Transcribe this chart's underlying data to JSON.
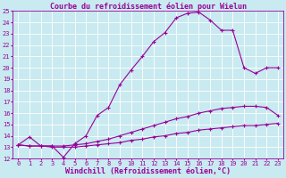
{
  "title": "Courbe du refroidissement éolien pour Wielun",
  "xlabel": "Windchill (Refroidissement éolien,°C)",
  "bg_color": "#c8eaf0",
  "line_color": "#990099",
  "grid_color": "#ffffff",
  "xlim": [
    -0.5,
    23.5
  ],
  "ylim": [
    12,
    25
  ],
  "xticks": [
    0,
    1,
    2,
    3,
    4,
    5,
    6,
    7,
    8,
    9,
    10,
    11,
    12,
    13,
    14,
    15,
    16,
    17,
    18,
    19,
    20,
    21,
    22,
    23
  ],
  "yticks": [
    12,
    13,
    14,
    15,
    16,
    17,
    18,
    19,
    20,
    21,
    22,
    23,
    24,
    25
  ],
  "line1_x": [
    0,
    1,
    2,
    3,
    4,
    5,
    6,
    7,
    8,
    9,
    10,
    11,
    12,
    13,
    14,
    15,
    16,
    17,
    18,
    19,
    20,
    21,
    22,
    23
  ],
  "line1_y": [
    13.2,
    13.9,
    13.1,
    13.1,
    12.1,
    13.3,
    14.0,
    15.8,
    16.5,
    18.5,
    19.8,
    21.0,
    22.3,
    23.1,
    24.4,
    24.8,
    24.9,
    24.2,
    23.3,
    23.3,
    20.0,
    19.5,
    20.0,
    20.0
  ],
  "line2_x": [
    0,
    1,
    2,
    3,
    4,
    5,
    6,
    7,
    8,
    9,
    10,
    11,
    12,
    13,
    14,
    15,
    16,
    17,
    18,
    19,
    20,
    21,
    22,
    23
  ],
  "line2_y": [
    13.2,
    13.1,
    13.1,
    13.1,
    13.1,
    13.2,
    13.3,
    13.5,
    13.7,
    14.0,
    14.3,
    14.6,
    14.9,
    15.2,
    15.5,
    15.7,
    16.0,
    16.2,
    16.4,
    16.5,
    16.6,
    16.6,
    16.5,
    15.8
  ],
  "line3_x": [
    0,
    1,
    2,
    3,
    4,
    5,
    6,
    7,
    8,
    9,
    10,
    11,
    12,
    13,
    14,
    15,
    16,
    17,
    18,
    19,
    20,
    21,
    22,
    23
  ],
  "line3_y": [
    13.2,
    13.1,
    13.1,
    13.0,
    13.0,
    13.0,
    13.1,
    13.2,
    13.3,
    13.4,
    13.6,
    13.7,
    13.9,
    14.0,
    14.2,
    14.3,
    14.5,
    14.6,
    14.7,
    14.8,
    14.9,
    14.9,
    15.0,
    15.1
  ],
  "figsize": [
    3.2,
    2.0
  ],
  "dpi": 100,
  "title_fontsize": 6,
  "axis_fontsize": 6,
  "tick_fontsize": 5,
  "marker": "+",
  "linewidth": 0.8,
  "markersize": 3,
  "markeredgewidth": 0.8
}
